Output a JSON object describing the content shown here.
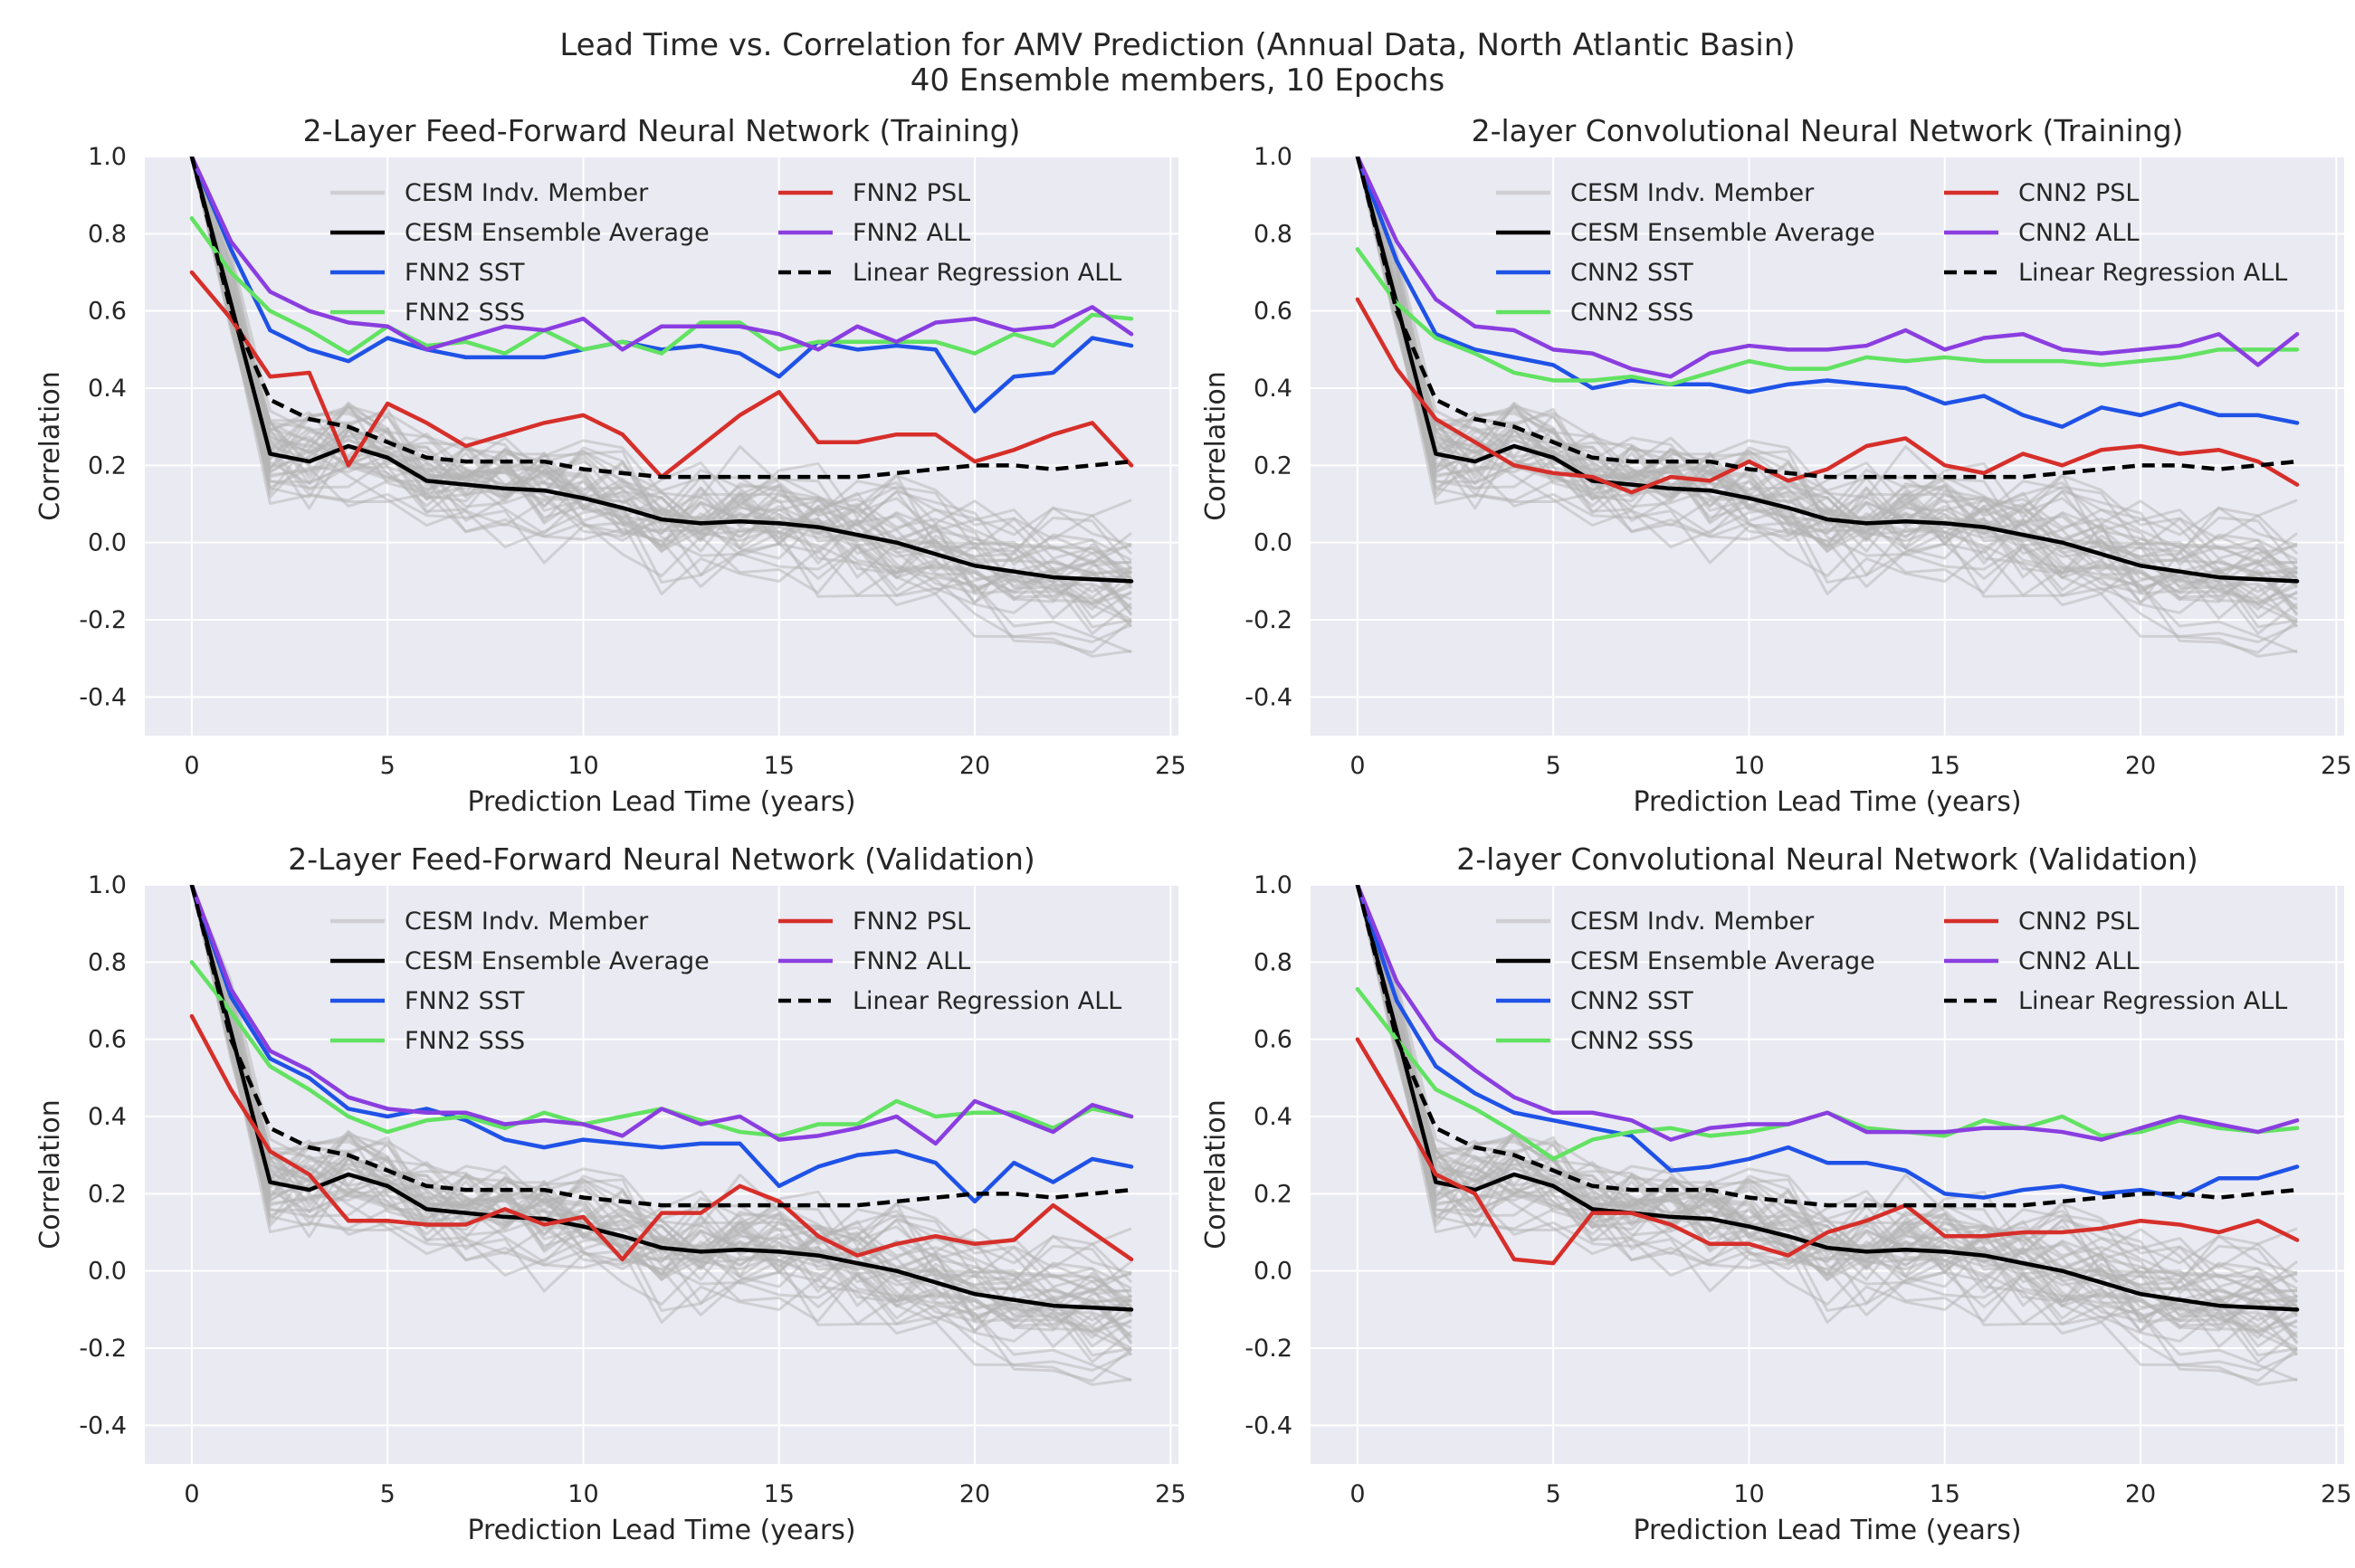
{
  "figure": {
    "suptitle_line1": "Lead Time vs. Correlation for AMV Prediction (Annual Data, North Atlantic Basin)",
    "suptitle_line2": "40 Ensemble members, 10 Epochs"
  },
  "colors": {
    "background": "#eaeaf2",
    "grid": "#ffffff",
    "member": "#b4b4b4",
    "ensemble": "#000000",
    "sst": "#1f52e6",
    "sss": "#62e262",
    "psl": "#d62f2a",
    "all": "#8a3ee0",
    "linreg": "#000000"
  },
  "chart_data": [
    {
      "type": "line",
      "title": "2-Layer Feed-Forward Neural Network (Training)",
      "xlabel": "Prediction Lead Time (years)",
      "ylabel": "Correlation",
      "xlim": [
        -1.2,
        25.2
      ],
      "ylim": [
        -0.5,
        1.0
      ],
      "xticks": [
        0,
        5,
        10,
        15,
        20,
        25
      ],
      "yticks": [
        -0.4,
        -0.2,
        0.0,
        0.2,
        0.4,
        0.6,
        0.8,
        1.0
      ],
      "grid": true,
      "legend_position": "top-center, 2 columns",
      "members_name": "CESM Indv. Member",
      "members_count": 40,
      "members_spread": 0.13,
      "series": [
        {
          "name": "CESM Ensemble Average",
          "color_key": "ensemble",
          "dash": false,
          "values": [
            1.0,
            0.62,
            0.23,
            0.21,
            0.25,
            0.22,
            0.16,
            0.15,
            0.14,
            0.135,
            0.115,
            0.09,
            0.06,
            0.05,
            0.055,
            0.05,
            0.04,
            0.02,
            0.0,
            -0.03,
            -0.06,
            -0.075,
            -0.09,
            -0.095,
            -0.1
          ]
        },
        {
          "name": "FNN2 SST",
          "color_key": "sst",
          "dash": false,
          "values": [
            1.0,
            0.76,
            0.55,
            0.5,
            0.47,
            0.53,
            0.5,
            0.48,
            0.48,
            0.48,
            0.5,
            0.52,
            0.5,
            0.51,
            0.49,
            0.43,
            0.52,
            0.5,
            0.51,
            0.5,
            0.34,
            0.43,
            0.44,
            0.53,
            0.51
          ]
        },
        {
          "name": "FNN2 SSS",
          "color_key": "sss",
          "dash": false,
          "values": [
            0.84,
            0.7,
            0.6,
            0.55,
            0.49,
            0.56,
            0.51,
            0.52,
            0.49,
            0.55,
            0.5,
            0.52,
            0.49,
            0.57,
            0.57,
            0.5,
            0.52,
            0.52,
            0.52,
            0.52,
            0.49,
            0.54,
            0.51,
            0.59,
            0.58
          ]
        },
        {
          "name": "FNN2 PSL",
          "color_key": "psl",
          "dash": false,
          "values": [
            0.7,
            0.58,
            0.43,
            0.44,
            0.2,
            0.36,
            0.31,
            0.25,
            0.28,
            0.31,
            0.33,
            0.28,
            0.17,
            0.25,
            0.33,
            0.39,
            0.26,
            0.26,
            0.28,
            0.28,
            0.21,
            0.24,
            0.28,
            0.31,
            0.2
          ]
        },
        {
          "name": "FNN2 ALL",
          "color_key": "all",
          "dash": false,
          "values": [
            1.0,
            0.78,
            0.65,
            0.6,
            0.57,
            0.56,
            0.5,
            0.53,
            0.56,
            0.55,
            0.58,
            0.5,
            0.56,
            0.56,
            0.56,
            0.54,
            0.5,
            0.56,
            0.52,
            0.57,
            0.58,
            0.55,
            0.56,
            0.61,
            0.54
          ]
        },
        {
          "name": "Linear Regression ALL",
          "color_key": "linreg",
          "dash": true,
          "values": [
            1.0,
            0.6,
            0.37,
            0.32,
            0.3,
            0.26,
            0.22,
            0.21,
            0.21,
            0.21,
            0.19,
            0.18,
            0.17,
            0.17,
            0.17,
            0.17,
            0.17,
            0.17,
            0.18,
            0.19,
            0.2,
            0.2,
            0.19,
            0.2,
            0.21
          ]
        }
      ]
    },
    {
      "type": "line",
      "title": "2-layer Convolutional Neural Network (Training)",
      "xlabel": "Prediction Lead Time (years)",
      "ylabel": "Correlation",
      "xlim": [
        -1.2,
        25.2
      ],
      "ylim": [
        -0.5,
        1.0
      ],
      "xticks": [
        0,
        5,
        10,
        15,
        20,
        25
      ],
      "yticks": [
        -0.4,
        -0.2,
        0.0,
        0.2,
        0.4,
        0.6,
        0.8,
        1.0
      ],
      "grid": true,
      "legend_position": "top-center, 2 columns",
      "members_name": "CESM Indv. Member",
      "members_count": 40,
      "members_spread": 0.13,
      "series": [
        {
          "name": "CESM Ensemble Average",
          "color_key": "ensemble",
          "dash": false,
          "values": [
            1.0,
            0.62,
            0.23,
            0.21,
            0.25,
            0.22,
            0.16,
            0.15,
            0.14,
            0.135,
            0.115,
            0.09,
            0.06,
            0.05,
            0.055,
            0.05,
            0.04,
            0.02,
            0.0,
            -0.03,
            -0.06,
            -0.075,
            -0.09,
            -0.095,
            -0.1
          ]
        },
        {
          "name": "CNN2 SST",
          "color_key": "sst",
          "dash": false,
          "values": [
            1.0,
            0.73,
            0.54,
            0.5,
            0.48,
            0.46,
            0.4,
            0.42,
            0.41,
            0.41,
            0.39,
            0.41,
            0.42,
            0.41,
            0.4,
            0.36,
            0.38,
            0.33,
            0.3,
            0.35,
            0.33,
            0.36,
            0.33,
            0.33,
            0.31
          ]
        },
        {
          "name": "CNN2 SSS",
          "color_key": "sss",
          "dash": false,
          "values": [
            0.76,
            0.62,
            0.53,
            0.49,
            0.44,
            0.42,
            0.42,
            0.43,
            0.41,
            0.44,
            0.47,
            0.45,
            0.45,
            0.48,
            0.47,
            0.48,
            0.47,
            0.47,
            0.47,
            0.46,
            0.47,
            0.48,
            0.5,
            0.5,
            0.5
          ]
        },
        {
          "name": "CNN2 PSL",
          "color_key": "psl",
          "dash": false,
          "values": [
            0.63,
            0.45,
            0.32,
            0.26,
            0.2,
            0.18,
            0.17,
            0.13,
            0.17,
            0.16,
            0.21,
            0.16,
            0.19,
            0.25,
            0.27,
            0.2,
            0.18,
            0.23,
            0.2,
            0.24,
            0.25,
            0.23,
            0.24,
            0.21,
            0.15
          ]
        },
        {
          "name": "CNN2 ALL",
          "color_key": "all",
          "dash": false,
          "values": [
            1.0,
            0.78,
            0.63,
            0.56,
            0.55,
            0.5,
            0.49,
            0.45,
            0.43,
            0.49,
            0.51,
            0.5,
            0.5,
            0.51,
            0.55,
            0.5,
            0.53,
            0.54,
            0.5,
            0.49,
            0.5,
            0.51,
            0.54,
            0.46,
            0.54
          ]
        },
        {
          "name": "Linear Regression ALL",
          "color_key": "linreg",
          "dash": true,
          "values": [
            1.0,
            0.6,
            0.37,
            0.32,
            0.3,
            0.26,
            0.22,
            0.21,
            0.21,
            0.21,
            0.19,
            0.18,
            0.17,
            0.17,
            0.17,
            0.17,
            0.17,
            0.17,
            0.18,
            0.19,
            0.2,
            0.2,
            0.19,
            0.2,
            0.21
          ]
        }
      ]
    },
    {
      "type": "line",
      "title": "2-Layer Feed-Forward Neural Network (Validation)",
      "xlabel": "Prediction Lead Time (years)",
      "ylabel": "Correlation",
      "xlim": [
        -1.2,
        25.2
      ],
      "ylim": [
        -0.5,
        1.0
      ],
      "xticks": [
        0,
        5,
        10,
        15,
        20,
        25
      ],
      "yticks": [
        -0.4,
        -0.2,
        0.0,
        0.2,
        0.4,
        0.6,
        0.8,
        1.0
      ],
      "grid": true,
      "legend_position": "top-center, 2 columns",
      "members_name": "CESM Indv. Member",
      "members_count": 40,
      "members_spread": 0.13,
      "series": [
        {
          "name": "CESM Ensemble Average",
          "color_key": "ensemble",
          "dash": false,
          "values": [
            1.0,
            0.62,
            0.23,
            0.21,
            0.25,
            0.22,
            0.16,
            0.15,
            0.14,
            0.135,
            0.115,
            0.09,
            0.06,
            0.05,
            0.055,
            0.05,
            0.04,
            0.02,
            0.0,
            -0.03,
            -0.06,
            -0.075,
            -0.09,
            -0.095,
            -0.1
          ]
        },
        {
          "name": "FNN2 SST",
          "color_key": "sst",
          "dash": false,
          "values": [
            1.0,
            0.71,
            0.55,
            0.5,
            0.42,
            0.4,
            0.42,
            0.39,
            0.34,
            0.32,
            0.34,
            0.33,
            0.32,
            0.33,
            0.33,
            0.22,
            0.27,
            0.3,
            0.31,
            0.28,
            0.18,
            0.28,
            0.23,
            0.29,
            0.27
          ]
        },
        {
          "name": "FNN2 SSS",
          "color_key": "sss",
          "dash": false,
          "values": [
            0.8,
            0.67,
            0.53,
            0.47,
            0.4,
            0.36,
            0.39,
            0.4,
            0.37,
            0.41,
            0.38,
            0.4,
            0.42,
            0.39,
            0.36,
            0.35,
            0.38,
            0.38,
            0.44,
            0.4,
            0.41,
            0.41,
            0.37,
            0.42,
            0.4
          ]
        },
        {
          "name": "FNN2 PSL",
          "color_key": "psl",
          "dash": false,
          "values": [
            0.66,
            0.47,
            0.31,
            0.25,
            0.13,
            0.13,
            0.12,
            0.12,
            0.16,
            0.12,
            0.14,
            0.03,
            0.15,
            0.15,
            0.22,
            0.18,
            0.09,
            0.04,
            0.07,
            0.09,
            0.07,
            0.08,
            0.17,
            0.1,
            0.03
          ]
        },
        {
          "name": "FNN2 ALL",
          "color_key": "all",
          "dash": false,
          "values": [
            1.0,
            0.73,
            0.57,
            0.52,
            0.45,
            0.42,
            0.41,
            0.41,
            0.38,
            0.39,
            0.38,
            0.35,
            0.42,
            0.38,
            0.4,
            0.34,
            0.35,
            0.37,
            0.4,
            0.33,
            0.44,
            0.4,
            0.36,
            0.43,
            0.4
          ]
        },
        {
          "name": "Linear Regression ALL",
          "color_key": "linreg",
          "dash": true,
          "values": [
            1.0,
            0.6,
            0.37,
            0.32,
            0.3,
            0.26,
            0.22,
            0.21,
            0.21,
            0.21,
            0.19,
            0.18,
            0.17,
            0.17,
            0.17,
            0.17,
            0.17,
            0.17,
            0.18,
            0.19,
            0.2,
            0.2,
            0.19,
            0.2,
            0.21
          ]
        }
      ]
    },
    {
      "type": "line",
      "title": "2-layer Convolutional Neural Network (Validation)",
      "xlabel": "Prediction Lead Time (years)",
      "ylabel": "Correlation",
      "xlim": [
        -1.2,
        25.2
      ],
      "ylim": [
        -0.5,
        1.0
      ],
      "xticks": [
        0,
        5,
        10,
        15,
        20,
        25
      ],
      "yticks": [
        -0.4,
        -0.2,
        0.0,
        0.2,
        0.4,
        0.6,
        0.8,
        1.0
      ],
      "grid": true,
      "legend_position": "top-center, 2 columns",
      "members_name": "CESM Indv. Member",
      "members_count": 40,
      "members_spread": 0.13,
      "series": [
        {
          "name": "CESM Ensemble Average",
          "color_key": "ensemble",
          "dash": false,
          "values": [
            1.0,
            0.62,
            0.23,
            0.21,
            0.25,
            0.22,
            0.16,
            0.15,
            0.14,
            0.135,
            0.115,
            0.09,
            0.06,
            0.05,
            0.055,
            0.05,
            0.04,
            0.02,
            0.0,
            -0.03,
            -0.06,
            -0.075,
            -0.09,
            -0.095,
            -0.1
          ]
        },
        {
          "name": "CNN2 SST",
          "color_key": "sst",
          "dash": false,
          "values": [
            1.0,
            0.7,
            0.53,
            0.46,
            0.41,
            0.39,
            0.37,
            0.35,
            0.26,
            0.27,
            0.29,
            0.32,
            0.28,
            0.28,
            0.26,
            0.2,
            0.19,
            0.21,
            0.22,
            0.2,
            0.21,
            0.19,
            0.24,
            0.24,
            0.27
          ]
        },
        {
          "name": "CNN2 SSS",
          "color_key": "sss",
          "dash": false,
          "values": [
            0.73,
            0.6,
            0.47,
            0.42,
            0.36,
            0.29,
            0.34,
            0.36,
            0.37,
            0.35,
            0.36,
            0.38,
            0.41,
            0.37,
            0.36,
            0.35,
            0.39,
            0.37,
            0.4,
            0.35,
            0.36,
            0.39,
            0.37,
            0.36,
            0.37
          ]
        },
        {
          "name": "CNN2 PSL",
          "color_key": "psl",
          "dash": false,
          "values": [
            0.6,
            0.43,
            0.25,
            0.2,
            0.03,
            0.02,
            0.15,
            0.15,
            0.12,
            0.07,
            0.07,
            0.04,
            0.1,
            0.13,
            0.17,
            0.09,
            0.09,
            0.1,
            0.1,
            0.11,
            0.13,
            0.12,
            0.1,
            0.13,
            0.08
          ]
        },
        {
          "name": "CNN2 ALL",
          "color_key": "all",
          "dash": false,
          "values": [
            1.0,
            0.75,
            0.6,
            0.52,
            0.45,
            0.41,
            0.41,
            0.39,
            0.34,
            0.37,
            0.38,
            0.38,
            0.41,
            0.36,
            0.36,
            0.36,
            0.37,
            0.37,
            0.36,
            0.34,
            0.37,
            0.4,
            0.38,
            0.36,
            0.39
          ]
        },
        {
          "name": "Linear Regression ALL",
          "color_key": "linreg",
          "dash": true,
          "values": [
            1.0,
            0.6,
            0.37,
            0.32,
            0.3,
            0.26,
            0.22,
            0.21,
            0.21,
            0.21,
            0.19,
            0.18,
            0.17,
            0.17,
            0.17,
            0.17,
            0.17,
            0.17,
            0.18,
            0.19,
            0.2,
            0.2,
            0.19,
            0.2,
            0.21
          ]
        }
      ]
    }
  ]
}
